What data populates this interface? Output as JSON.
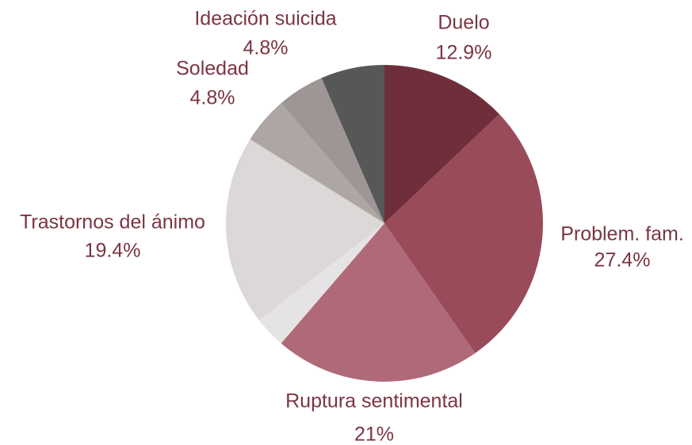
{
  "chart_data": {
    "type": "pie",
    "categories": [
      "Duelo",
      "Problem. fam.",
      "Ruptura sentimental",
      null,
      "Trastornos del ánimo",
      "Soledad",
      "Ideación suicida",
      null
    ],
    "values": [
      12.9,
      27.4,
      21,
      3.2,
      19.4,
      4.8,
      4.8,
      6.5
    ],
    "value_labels": [
      "12.9%",
      "27.4%",
      "21%",
      null,
      "19.4%",
      "4.8%",
      "4.8%",
      null
    ],
    "colors": [
      "#6e2f3b",
      "#994b5a",
      "#b06978",
      "#e5e3e3",
      "#dbd8d7",
      "#ada6a3",
      "#9d9695",
      "#575757"
    ]
  }
}
